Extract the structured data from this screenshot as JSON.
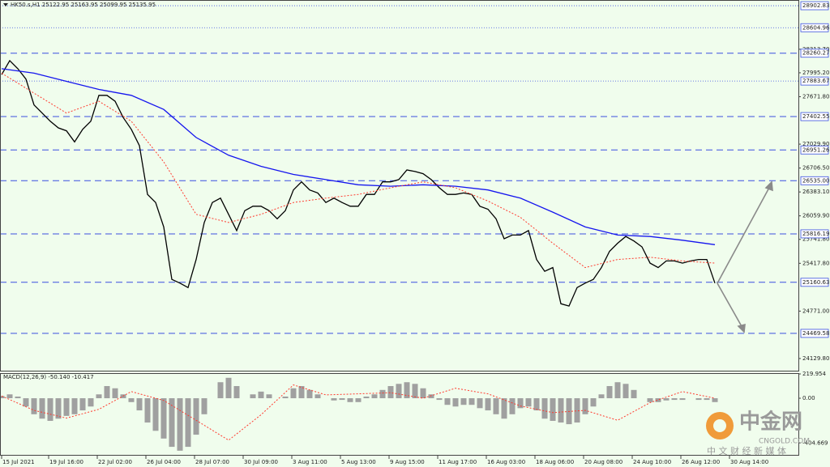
{
  "chart_data": [
    {
      "type": "line",
      "title": "HK50.s,H1  25122.95 25163.95 25099.95 25135.95",
      "xlim": [
        -0.2,
        98.3
      ],
      "ylim": [
        23965,
        28980
      ],
      "yticks": [
        {
          "value": 28313.7,
          "label": "28313.70"
        },
        {
          "value": 27995.2,
          "label": "27995.20"
        },
        {
          "value": 27671.8,
          "label": "27671.80"
        },
        {
          "value": 27029.9,
          "label": "27029.90"
        },
        {
          "value": 26706.5,
          "label": "26706.50"
        },
        {
          "value": 26383.1,
          "label": "26383.10"
        },
        {
          "value": 26059.9,
          "label": "26059.90"
        },
        {
          "value": 25741.8,
          "label": "25741.80"
        },
        {
          "value": 25417.8,
          "label": "25417.80"
        },
        {
          "value": 24771,
          "label": "24771.00"
        },
        {
          "value": 24129.8,
          "label": "24129.80"
        }
      ],
      "xticks": [
        {
          "value": 0,
          "label": "15 Jul 2021"
        },
        {
          "value": 5.8,
          "label": "19 Jul 16:00"
        },
        {
          "value": 11.8,
          "label": "22 Jul 02:00"
        },
        {
          "value": 17.8,
          "label": "26 Jul 04:00"
        },
        {
          "value": 23.8,
          "label": "28 Jul 07:00"
        },
        {
          "value": 29.8,
          "label": "30 Jul 09:00"
        },
        {
          "value": 35.8,
          "label": "3 Aug 11:00"
        },
        {
          "value": 41.8,
          "label": "5 Aug 13:00"
        },
        {
          "value": 47.8,
          "label": "9 Aug 15:00"
        },
        {
          "value": 53.8,
          "label": "11 Aug 17:00"
        },
        {
          "value": 59.8,
          "label": "16 Aug 03:00"
        },
        {
          "value": 65.8,
          "label": "18 Aug 06:00"
        },
        {
          "value": 71.8,
          "label": "20 Aug 08:00"
        },
        {
          "value": 77.8,
          "label": "24 Aug 10:00"
        },
        {
          "value": 83.8,
          "label": "26 Aug 12:00"
        },
        {
          "value": 89.8,
          "label": "30 Aug 14:00"
        }
      ],
      "levels": [
        {
          "value": 28902.83,
          "label": "28902.83",
          "style": "dotted"
        },
        {
          "value": 28604.96,
          "label": "28604.96",
          "style": "dotted"
        },
        {
          "value": 28260.27,
          "label": "28260.27",
          "style": "dashed"
        },
        {
          "value": 27883.67,
          "label": "27883.67",
          "style": "dotted"
        },
        {
          "value": 27402.55,
          "label": "27402.55",
          "style": "dashed"
        },
        {
          "value": 26951.26,
          "label": "26951.26",
          "style": "dashed"
        },
        {
          "value": 26535,
          "label": "26535.00",
          "style": "dashed"
        },
        {
          "value": 25816.19,
          "label": "25816.19",
          "style": "dashed"
        },
        {
          "value": 25160.63,
          "label": "25160.63",
          "style": "dashed"
        },
        {
          "value": 24469.58,
          "label": "24469.58",
          "style": "dashed"
        }
      ],
      "series": [
        {
          "color": "#000000",
          "values": [
            27970,
            28160,
            28050,
            27910,
            27560,
            27450,
            27340,
            27250,
            27210,
            27060,
            27230,
            27340,
            27690,
            27690,
            27610,
            27390,
            27230,
            27010,
            26350,
            26240,
            25910,
            25200,
            25150,
            25090,
            25470,
            25970,
            26240,
            26300,
            26080,
            25860,
            26130,
            26190,
            26190,
            26130,
            26020,
            26130,
            26410,
            26520,
            26410,
            26370,
            26240,
            26300,
            26240,
            26190,
            26190,
            26350,
            26350,
            26520,
            26520,
            26550,
            26680,
            26660,
            26630,
            26550,
            26440,
            26350,
            26350,
            26370,
            26350,
            26190,
            26150,
            26020,
            25750,
            25800,
            25800,
            25860,
            25470,
            25310,
            25360,
            24870,
            24840,
            25090,
            25150,
            25200,
            25360,
            25580,
            25690,
            25780,
            25720,
            25640,
            25420,
            25360,
            25450,
            25450,
            25420,
            25450,
            25470,
            25470,
            25150
          ]
        },
        {
          "color": "#1515ee",
          "x": [
            0,
            4,
            8,
            12,
            16,
            20,
            24,
            28,
            32,
            36,
            40,
            44,
            48,
            52,
            56,
            60,
            64,
            68,
            72,
            76,
            80,
            84,
            88
          ],
          "values": [
            28050,
            27990,
            27880,
            27770,
            27690,
            27500,
            27120,
            26880,
            26730,
            26620,
            26550,
            26480,
            26460,
            26480,
            26460,
            26410,
            26300,
            26110,
            25910,
            25800,
            25780,
            25730,
            25670
          ]
        },
        {
          "color": "#ff3b2f",
          "dash": "2,2",
          "x": [
            0,
            4,
            8,
            12,
            16,
            20,
            24,
            28,
            32,
            36,
            40,
            44,
            48,
            52,
            56,
            60,
            64,
            68,
            72,
            76,
            80,
            84,
            88
          ],
          "values": [
            27990,
            27720,
            27450,
            27610,
            27340,
            26790,
            26080,
            25970,
            26080,
            26240,
            26300,
            26350,
            26440,
            26520,
            26440,
            26260,
            26040,
            25690,
            25360,
            25470,
            25500,
            25450,
            25420
          ]
        }
      ]
    },
    {
      "type": "bar",
      "title": "MACD(12,26,9) -50.140 -10.417",
      "xlim": [
        -0.2,
        98.3
      ],
      "ylim": [
        -520,
        220
      ],
      "yticks": [
        219.954,
        {
          "value": 0,
          "label": "0.00"
        },
        -404.669
      ],
      "series": [
        {
          "type": "bar",
          "color": "#a0a0a0",
          "values": [
            20,
            35,
            15,
            -75,
            -145,
            -185,
            -205,
            -185,
            -160,
            -145,
            -110,
            -75,
            35,
            110,
            90,
            35,
            -35,
            -110,
            -220,
            -295,
            -365,
            -440,
            -475,
            -440,
            -330,
            -145,
            0,
            145,
            185,
            110,
            0,
            35,
            60,
            35,
            0,
            15,
            90,
            110,
            75,
            35,
            0,
            -20,
            -15,
            -35,
            -35,
            15,
            35,
            75,
            110,
            130,
            145,
            130,
            90,
            35,
            -15,
            -60,
            -75,
            -60,
            -60,
            -90,
            -110,
            -145,
            -185,
            -145,
            -90,
            -75,
            -110,
            -185,
            -205,
            -220,
            -235,
            -220,
            -145,
            -75,
            35,
            110,
            145,
            130,
            75,
            0,
            -35,
            -35,
            -20,
            -15,
            -15,
            0,
            -15,
            -15,
            -35
          ]
        },
        {
          "type": "line",
          "color": "#ff3b2f",
          "dash": "2,2",
          "x": [
            0,
            4,
            8,
            12,
            16,
            20,
            24,
            28,
            32,
            36,
            40,
            44,
            48,
            52,
            56,
            60,
            64,
            68,
            72,
            76,
            80,
            84,
            88
          ],
          "values": [
            20,
            -110,
            -180,
            -100,
            60,
            -20,
            -200,
            -380,
            -150,
            120,
            30,
            40,
            50,
            0,
            90,
            40,
            -70,
            -130,
            -110,
            -200,
            -40,
            60,
            0
          ]
        }
      ]
    }
  ],
  "watermark": {
    "brand": "中金网",
    "site": "CNGOLD.COM",
    "slogan": "中 文 财 经 新 媒 体"
  }
}
